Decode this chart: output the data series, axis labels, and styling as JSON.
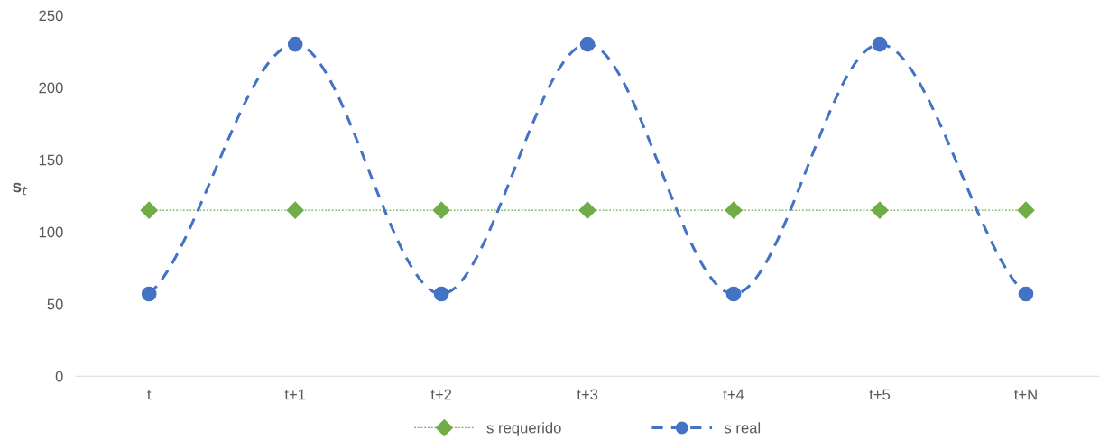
{
  "chart_data": {
    "type": "line",
    "ylabel": "s$_{t}$",
    "categories": [
      "t",
      "t+1",
      "t+2",
      "t+3",
      "t+4",
      "t+5",
      "t+N"
    ],
    "series": [
      {
        "name": "s requerido",
        "color": "#70ad47",
        "values": [
          115,
          115,
          115,
          115,
          115,
          115,
          115
        ],
        "marker": "diamond",
        "line_style": "dotted"
      },
      {
        "name": "s real",
        "color": "#4472c4",
        "values": [
          57,
          230,
          57,
          230,
          57,
          230,
          57
        ],
        "marker": "circle",
        "line_style": "dashed"
      }
    ],
    "ylim": [
      0,
      250
    ],
    "yticks": [
      0,
      50,
      100,
      150,
      200,
      250
    ],
    "grid": false,
    "legend": "bottom"
  }
}
